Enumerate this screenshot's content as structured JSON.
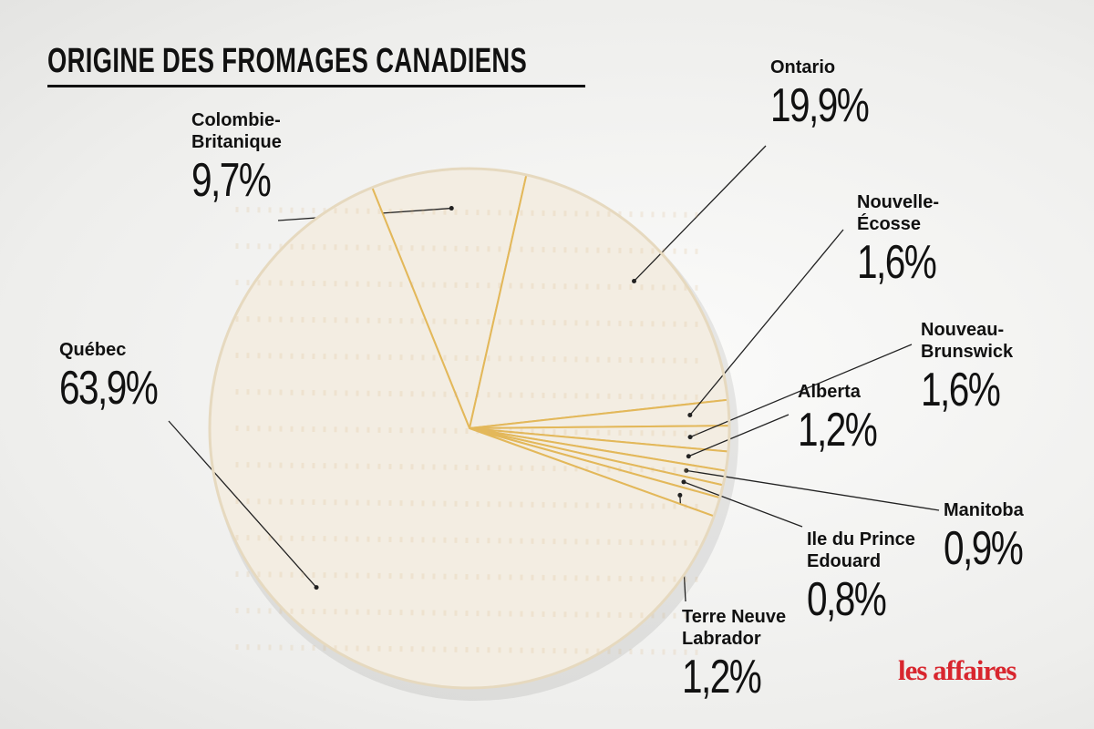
{
  "chart_data": {
    "type": "pie",
    "title": "ORIGINE DES FROMAGES CANADIENS",
    "categories": [
      "Colombie-\nBritanique",
      "Ontario",
      "Nouvelle-\nÉcosse",
      "Nouveau-\nBrunswick",
      "Alberta",
      "Manitoba",
      "Ile du Prince\nEdouard",
      "Terre Neuve\nLabrador",
      "Québec"
    ],
    "values": [
      9.7,
      19.9,
      1.6,
      1.6,
      1.2,
      0.9,
      0.8,
      1.2,
      63.9
    ],
    "value_labels": [
      "9,7%",
      "19,9%",
      "1,6%",
      "1,6%",
      "1,2%",
      "0,9%",
      "0,8%",
      "1,2%",
      "63,9%"
    ],
    "color": "#f3ede2",
    "source_logo": "les affaires"
  }
}
